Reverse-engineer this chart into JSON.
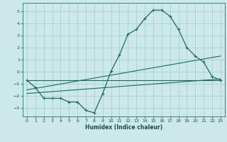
{
  "xlabel": "Humidex (Indice chaleur)",
  "bg_color": "#cce8e8",
  "grid_color": "#aacfcf",
  "line_color": "#1a6b60",
  "xlim": [
    -0.5,
    23.5
  ],
  "ylim": [
    -3.7,
    5.7
  ],
  "xticks": [
    0,
    1,
    2,
    3,
    4,
    5,
    6,
    7,
    8,
    9,
    10,
    11,
    12,
    13,
    14,
    15,
    16,
    17,
    18,
    19,
    20,
    21,
    22,
    23
  ],
  "yticks": [
    -3,
    -2,
    -1,
    0,
    1,
    2,
    3,
    4,
    5
  ],
  "line1_x": [
    0,
    1,
    2,
    3,
    4,
    5,
    6,
    7,
    8,
    9,
    10,
    11,
    12,
    13,
    14,
    15,
    16,
    17,
    18,
    19,
    20,
    21,
    22,
    23
  ],
  "line1_y": [
    -0.7,
    -1.3,
    -2.2,
    -2.2,
    -2.2,
    -2.5,
    -2.5,
    -3.2,
    -3.4,
    -1.8,
    0.05,
    1.4,
    3.1,
    3.5,
    4.4,
    5.1,
    5.1,
    4.6,
    3.5,
    2.0,
    1.3,
    0.8,
    -0.4,
    -0.7
  ],
  "line2_x": [
    0,
    23
  ],
  "line2_y": [
    -0.7,
    -0.7
  ],
  "line3_x": [
    0,
    23
  ],
  "line3_y": [
    -1.5,
    1.3
  ],
  "line4_x": [
    0,
    23
  ],
  "line4_y": [
    -1.8,
    -0.6
  ]
}
